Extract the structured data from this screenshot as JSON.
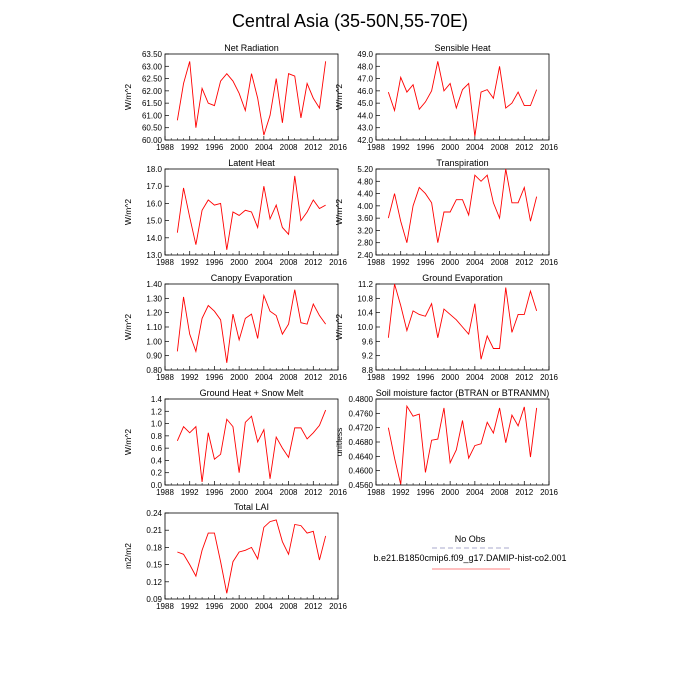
{
  "figure": {
    "title": "Central Asia (35-50N,55-70E)"
  },
  "legend": {
    "entries": [
      {
        "label": "No Obs",
        "color": "#aaaacc",
        "dashed": true
      },
      {
        "label": "b.e21.B1850cmip6.f09_g17.DAMIP-hist-co2.001",
        "color": "#ff7f7f",
        "dashed": false
      }
    ]
  },
  "chart_data": [
    {
      "type": "line",
      "title": "Net Radiation",
      "ylabel": "W/m^2",
      "xlim": [
        1988,
        2016
      ],
      "ylim": [
        60.0,
        63.5
      ],
      "xticks": [
        "1988",
        "1992",
        "1996",
        "2000",
        "2004",
        "2008",
        "2012",
        "2016"
      ],
      "yticks": [
        "60.00",
        "60.50",
        "61.00",
        "61.50",
        "62.00",
        "62.50",
        "63.00",
        "63.50"
      ],
      "series": [
        {
          "color": "#ff0000",
          "x": [
            1990,
            1991,
            1992,
            1993,
            1994,
            1995,
            1996,
            1997,
            1998,
            1999,
            2000,
            2001,
            2002,
            2003,
            2004,
            2005,
            2006,
            2007,
            2008,
            2009,
            2010,
            2011,
            2012,
            2013,
            2014
          ],
          "values": [
            60.8,
            62.3,
            63.2,
            60.5,
            62.1,
            61.5,
            61.4,
            62.4,
            62.7,
            62.4,
            61.9,
            61.2,
            62.7,
            61.7,
            60.2,
            61.0,
            62.5,
            60.7,
            62.7,
            62.6,
            60.9,
            62.3,
            61.7,
            61.3,
            63.2
          ]
        }
      ]
    },
    {
      "type": "line",
      "title": "Sensible Heat",
      "ylabel": "W/m^2",
      "xlim": [
        1988,
        2016
      ],
      "ylim": [
        42.0,
        49.0
      ],
      "xticks": [
        "1988",
        "1992",
        "1996",
        "2000",
        "2004",
        "2008",
        "2012",
        "2016"
      ],
      "yticks": [
        "42.0",
        "43.0",
        "44.0",
        "45.0",
        "46.0",
        "47.0",
        "48.0",
        "49.0"
      ],
      "series": [
        {
          "color": "#ff0000",
          "x": [
            1990,
            1991,
            1992,
            1993,
            1994,
            1995,
            1996,
            1997,
            1998,
            1999,
            2000,
            2001,
            2002,
            2003,
            2004,
            2005,
            2006,
            2007,
            2008,
            2009,
            2010,
            2011,
            2012,
            2013,
            2014
          ],
          "values": [
            45.9,
            44.4,
            47.1,
            45.9,
            46.5,
            44.5,
            45.1,
            46.0,
            48.4,
            46.0,
            46.6,
            44.6,
            46.1,
            46.6,
            42.3,
            45.9,
            46.1,
            45.4,
            48.0,
            44.6,
            45.0,
            45.9,
            44.8,
            44.8,
            46.1
          ]
        }
      ]
    },
    {
      "type": "line",
      "title": "Latent Heat",
      "ylabel": "W/m^2",
      "xlim": [
        1988,
        2016
      ],
      "ylim": [
        13.0,
        18.0
      ],
      "xticks": [
        "1988",
        "1992",
        "1996",
        "2000",
        "2004",
        "2008",
        "2012",
        "2016"
      ],
      "yticks": [
        "13.0",
        "14.0",
        "15.0",
        "16.0",
        "17.0",
        "18.0"
      ],
      "series": [
        {
          "color": "#ff0000",
          "x": [
            1990,
            1991,
            1992,
            1993,
            1994,
            1995,
            1996,
            1997,
            1998,
            1999,
            2000,
            2001,
            2002,
            2003,
            2004,
            2005,
            2006,
            2007,
            2008,
            2009,
            2010,
            2011,
            2012,
            2013,
            2014
          ],
          "values": [
            14.3,
            16.9,
            15.2,
            13.6,
            15.6,
            16.2,
            15.9,
            16.0,
            13.3,
            15.5,
            15.3,
            15.6,
            15.5,
            14.6,
            17.0,
            15.1,
            15.9,
            14.6,
            14.2,
            17.6,
            15.0,
            15.5,
            16.2,
            15.7,
            15.9
          ]
        }
      ]
    },
    {
      "type": "line",
      "title": "Transpiration",
      "ylabel": "W/m^2",
      "xlim": [
        1988,
        2016
      ],
      "ylim": [
        2.4,
        5.2
      ],
      "xticks": [
        "1988",
        "1992",
        "1996",
        "2000",
        "2004",
        "2008",
        "2012",
        "2016"
      ],
      "yticks": [
        "2.40",
        "2.80",
        "3.20",
        "3.60",
        "4.00",
        "4.40",
        "4.80",
        "5.20"
      ],
      "series": [
        {
          "color": "#ff0000",
          "x": [
            1990,
            1991,
            1992,
            1993,
            1994,
            1995,
            1996,
            1997,
            1998,
            1999,
            2000,
            2001,
            2002,
            2003,
            2004,
            2005,
            2006,
            2007,
            2008,
            2009,
            2010,
            2011,
            2012,
            2013,
            2014
          ],
          "values": [
            3.6,
            4.4,
            3.5,
            2.8,
            4.0,
            4.6,
            4.4,
            4.1,
            2.8,
            3.8,
            3.8,
            4.2,
            4.2,
            3.7,
            5.0,
            4.8,
            5.0,
            4.1,
            3.6,
            5.2,
            4.1,
            4.1,
            4.6,
            3.5,
            4.3
          ]
        }
      ]
    },
    {
      "type": "line",
      "title": "Canopy Evaporation",
      "ylabel": "W/m^2",
      "xlim": [
        1988,
        2016
      ],
      "ylim": [
        0.8,
        1.4
      ],
      "xticks": [
        "1988",
        "1992",
        "1996",
        "2000",
        "2004",
        "2008",
        "2012",
        "2016"
      ],
      "yticks": [
        "0.80",
        "0.90",
        "1.00",
        "1.10",
        "1.20",
        "1.30",
        "1.40"
      ],
      "series": [
        {
          "color": "#ff0000",
          "x": [
            1990,
            1991,
            1992,
            1993,
            1994,
            1995,
            1996,
            1997,
            1998,
            1999,
            2000,
            2001,
            2002,
            2003,
            2004,
            2005,
            2006,
            2007,
            2008,
            2009,
            2010,
            2011,
            2012,
            2013,
            2014
          ],
          "values": [
            0.93,
            1.31,
            1.05,
            0.93,
            1.16,
            1.25,
            1.21,
            1.15,
            0.85,
            1.19,
            1.01,
            1.16,
            1.19,
            1.02,
            1.32,
            1.21,
            1.18,
            1.05,
            1.12,
            1.36,
            1.13,
            1.12,
            1.26,
            1.18,
            1.12
          ]
        }
      ]
    },
    {
      "type": "line",
      "title": "Ground Evaporation",
      "ylabel": "W/m^2",
      "xlim": [
        1988,
        2016
      ],
      "ylim": [
        8.8,
        11.2
      ],
      "xticks": [
        "1988",
        "1992",
        "1996",
        "2000",
        "2004",
        "2008",
        "2012",
        "2016"
      ],
      "yticks": [
        "8.8",
        "9.2",
        "9.6",
        "10.0",
        "10.4",
        "10.8",
        "11.2"
      ],
      "series": [
        {
          "color": "#ff0000",
          "x": [
            1990,
            1991,
            1992,
            1993,
            1994,
            1995,
            1996,
            1997,
            1998,
            1999,
            2000,
            2001,
            2002,
            2003,
            2004,
            2005,
            2006,
            2007,
            2008,
            2009,
            2010,
            2011,
            2012,
            2013,
            2014
          ],
          "values": [
            9.7,
            11.2,
            10.6,
            9.9,
            10.45,
            10.35,
            10.3,
            10.65,
            9.7,
            10.5,
            10.35,
            10.2,
            10.0,
            9.8,
            10.65,
            9.1,
            9.75,
            9.4,
            9.4,
            11.1,
            9.85,
            10.35,
            10.35,
            11.0,
            10.45
          ]
        }
      ]
    },
    {
      "type": "line",
      "title": "Ground Heat + Snow Melt",
      "ylabel": "W/m^2",
      "xlim": [
        1988,
        2016
      ],
      "ylim": [
        0.0,
        1.4
      ],
      "xticks": [
        "1988",
        "1992",
        "1996",
        "2000",
        "2004",
        "2008",
        "2012",
        "2016"
      ],
      "yticks": [
        "0.0",
        "0.2",
        "0.4",
        "0.6",
        "0.8",
        "1.0",
        "1.2",
        "1.4"
      ],
      "series": [
        {
          "color": "#ff0000",
          "x": [
            1990,
            1991,
            1992,
            1993,
            1994,
            1995,
            1996,
            1997,
            1998,
            1999,
            2000,
            2001,
            2002,
            2003,
            2004,
            2005,
            2006,
            2007,
            2008,
            2009,
            2010,
            2011,
            2012,
            2013,
            2014
          ],
          "values": [
            0.72,
            0.95,
            0.85,
            0.95,
            0.05,
            0.85,
            0.42,
            0.5,
            1.07,
            0.95,
            0.2,
            1.02,
            1.12,
            0.7,
            0.9,
            0.1,
            0.78,
            0.6,
            0.45,
            0.93,
            0.93,
            0.75,
            0.85,
            0.97,
            1.22
          ]
        }
      ]
    },
    {
      "type": "line",
      "title": "Soil moisture factor (BTRAN or BTRANMN)",
      "ylabel": "unitless",
      "xlim": [
        1988,
        2016
      ],
      "ylim": [
        0.456,
        0.48
      ],
      "xticks": [
        "1988",
        "1992",
        "1996",
        "2000",
        "2004",
        "2008",
        "2012",
        "2016"
      ],
      "yticks": [
        "0.4560",
        "0.4600",
        "0.4640",
        "0.4680",
        "0.4720",
        "0.4760",
        "0.4800"
      ],
      "series": [
        {
          "color": "#ff0000",
          "x": [
            1990,
            1991,
            1992,
            1993,
            1994,
            1995,
            1996,
            1997,
            1998,
            1999,
            2000,
            2001,
            2002,
            2003,
            2004,
            2005,
            2006,
            2007,
            2008,
            2009,
            2010,
            2011,
            2012,
            2013,
            2014
          ],
          "values": [
            0.472,
            0.4635,
            0.4562,
            0.478,
            0.4752,
            0.4758,
            0.4595,
            0.4685,
            0.4688,
            0.4775,
            0.4622,
            0.4658,
            0.474,
            0.4635,
            0.467,
            0.4675,
            0.4735,
            0.4705,
            0.4775,
            0.4678,
            0.4755,
            0.4725,
            0.4778,
            0.4638,
            0.4775
          ]
        }
      ]
    },
    {
      "type": "line",
      "title": "Total LAI",
      "ylabel": "m2/m2",
      "xlim": [
        1988,
        2016
      ],
      "ylim": [
        0.09,
        0.24
      ],
      "xticks": [
        "1988",
        "1992",
        "1996",
        "2000",
        "2004",
        "2008",
        "2012",
        "2016"
      ],
      "yticks": [
        "0.09",
        "0.12",
        "0.15",
        "0.18",
        "0.21",
        "0.24"
      ],
      "series": [
        {
          "color": "#ff0000",
          "x": [
            1990,
            1991,
            1992,
            1993,
            1994,
            1995,
            1996,
            1997,
            1998,
            1999,
            2000,
            2001,
            2002,
            2003,
            2004,
            2005,
            2006,
            2007,
            2008,
            2009,
            2010,
            2011,
            2012,
            2013,
            2014
          ],
          "values": [
            0.172,
            0.168,
            0.15,
            0.13,
            0.175,
            0.205,
            0.205,
            0.155,
            0.1,
            0.155,
            0.172,
            0.175,
            0.18,
            0.16,
            0.215,
            0.225,
            0.228,
            0.19,
            0.168,
            0.22,
            0.218,
            0.205,
            0.208,
            0.158,
            0.2
          ]
        }
      ]
    }
  ]
}
